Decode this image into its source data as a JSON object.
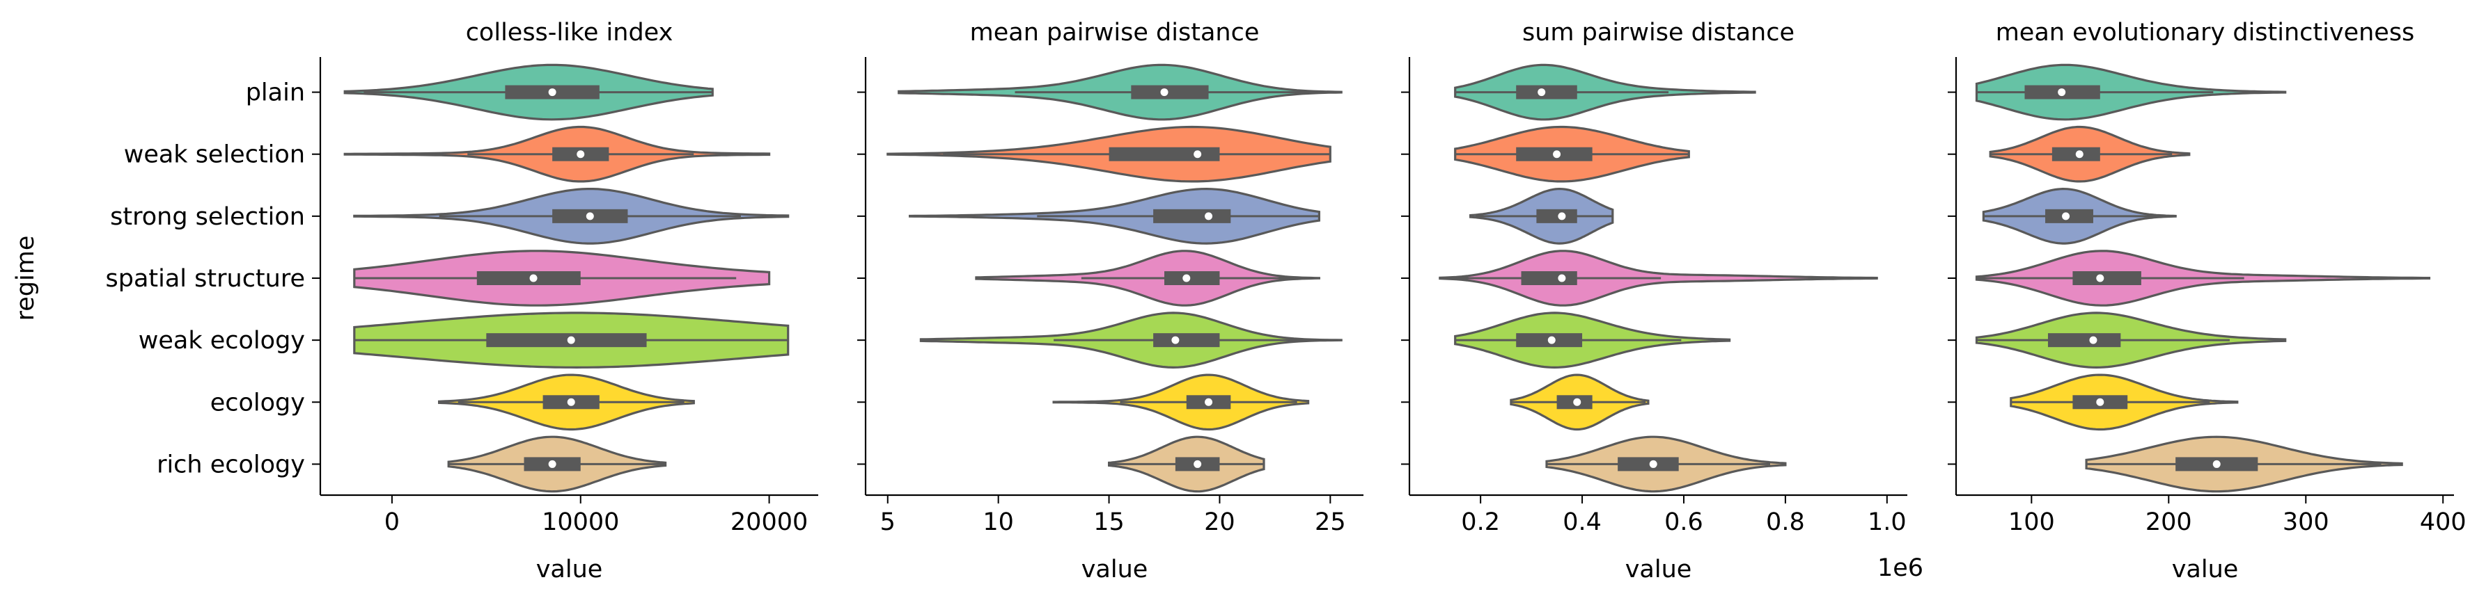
{
  "chart_data": {
    "type": "violin",
    "orientation": "horizontal",
    "shared_y": true,
    "ylabel": "regime",
    "categories": [
      "plain",
      "weak selection",
      "strong selection",
      "spatial structure",
      "weak ecology",
      "ecology",
      "rich ecology"
    ],
    "colors": [
      "#66c2a5",
      "#fc8d62",
      "#8da0cb",
      "#e78ac3",
      "#a6d854",
      "#ffd92f",
      "#e5c494"
    ],
    "panels": [
      {
        "title": "colless-like index",
        "xlabel": "value",
        "offset_label": "",
        "xlim": [
          -3800,
          22600
        ],
        "ticks": [
          0,
          10000,
          20000
        ],
        "tick_labels": [
          "0",
          "10000",
          "20000"
        ],
        "violins": [
          {
            "min": -2500,
            "q1": 6000,
            "median": 8500,
            "q3": 11000,
            "max": 17000,
            "shape": "normal"
          },
          {
            "min": -2500,
            "q1": 8500,
            "median": 10000,
            "q3": 11500,
            "max": 20000,
            "shape": "normal"
          },
          {
            "min": -2000,
            "q1": 8500,
            "median": 10500,
            "q3": 12500,
            "max": 21000,
            "shape": "normal"
          },
          {
            "min": -2000,
            "q1": 4500,
            "median": 7500,
            "q3": 10000,
            "max": 20000,
            "shape": "wide"
          },
          {
            "min": -2000,
            "q1": 5000,
            "median": 9500,
            "q3": 13500,
            "max": 21000,
            "shape": "wide"
          },
          {
            "min": 2500,
            "q1": 8000,
            "median": 9500,
            "q3": 11000,
            "max": 16000,
            "shape": "normal"
          },
          {
            "min": 3000,
            "q1": 7000,
            "median": 8500,
            "q3": 10000,
            "max": 14500,
            "shape": "normal"
          }
        ]
      },
      {
        "title": "mean pairwise distance",
        "xlabel": "value",
        "offset_label": "",
        "xlim": [
          4,
          26.5
        ],
        "ticks": [
          5,
          10,
          15,
          20,
          25
        ],
        "tick_labels": [
          "5",
          "10",
          "15",
          "20",
          "25"
        ],
        "violins": [
          {
            "min": 5.5,
            "q1": 16,
            "median": 17.5,
            "q3": 19.5,
            "max": 25.5,
            "shape": "skewR"
          },
          {
            "min": 5,
            "q1": 15,
            "median": 19,
            "q3": 20,
            "max": 25,
            "shape": "skewR"
          },
          {
            "min": 6,
            "q1": 17,
            "median": 19.5,
            "q3": 20.5,
            "max": 24.5,
            "shape": "skewR"
          },
          {
            "min": 9,
            "q1": 17.5,
            "median": 18.5,
            "q3": 20,
            "max": 24.5,
            "shape": "skewR"
          },
          {
            "min": 6.5,
            "q1": 17,
            "median": 18,
            "q3": 20,
            "max": 25.5,
            "shape": "skewR"
          },
          {
            "min": 12.5,
            "q1": 18.5,
            "median": 19.5,
            "q3": 20.5,
            "max": 24,
            "shape": "normal"
          },
          {
            "min": 15,
            "q1": 18,
            "median": 19,
            "q3": 20,
            "max": 22,
            "shape": "normal"
          }
        ]
      },
      {
        "title": "sum pairwise distance",
        "xlabel": "value",
        "offset_label": "1e6",
        "xlim": [
          0.06,
          1.04
        ],
        "ticks": [
          0.2,
          0.4,
          0.6,
          0.8,
          1.0
        ],
        "tick_labels": [
          "0.2",
          "0.4",
          "0.6",
          "0.8",
          "1.0"
        ],
        "violins": [
          {
            "min": 0.15,
            "q1": 0.27,
            "median": 0.32,
            "q3": 0.39,
            "max": 0.74,
            "shape": "skewL"
          },
          {
            "min": 0.15,
            "q1": 0.27,
            "median": 0.35,
            "q3": 0.42,
            "max": 0.61,
            "shape": "skewL"
          },
          {
            "min": 0.18,
            "q1": 0.31,
            "median": 0.36,
            "q3": 0.39,
            "max": 0.46,
            "shape": "skewR"
          },
          {
            "min": 0.12,
            "q1": 0.28,
            "median": 0.36,
            "q3": 0.39,
            "max": 0.98,
            "shape": "skewL"
          },
          {
            "min": 0.15,
            "q1": 0.27,
            "median": 0.34,
            "q3": 0.4,
            "max": 0.69,
            "shape": "skewL"
          },
          {
            "min": 0.26,
            "q1": 0.35,
            "median": 0.39,
            "q3": 0.42,
            "max": 0.53,
            "shape": "normal"
          },
          {
            "min": 0.33,
            "q1": 0.47,
            "median": 0.54,
            "q3": 0.59,
            "max": 0.8,
            "shape": "normal"
          }
        ]
      },
      {
        "title": "mean evolutionary distinctiveness",
        "xlabel": "value",
        "offset_label": "",
        "xlim": [
          45,
          408
        ],
        "ticks": [
          100,
          200,
          300,
          400
        ],
        "tick_labels": [
          "100",
          "200",
          "300",
          "400"
        ],
        "violins": [
          {
            "min": 60,
            "q1": 95,
            "median": 122,
            "q3": 150,
            "max": 285,
            "shape": "skewL"
          },
          {
            "min": 70,
            "q1": 115,
            "median": 135,
            "q3": 150,
            "max": 215,
            "shape": "normal"
          },
          {
            "min": 65,
            "q1": 110,
            "median": 125,
            "q3": 145,
            "max": 205,
            "shape": "skewR"
          },
          {
            "min": 60,
            "q1": 130,
            "median": 150,
            "q3": 180,
            "max": 390,
            "shape": "skewL"
          },
          {
            "min": 60,
            "q1": 112,
            "median": 145,
            "q3": 165,
            "max": 285,
            "shape": "skewL"
          },
          {
            "min": 85,
            "q1": 130,
            "median": 150,
            "q3": 170,
            "max": 250,
            "shape": "normal"
          },
          {
            "min": 140,
            "q1": 205,
            "median": 235,
            "q3": 265,
            "max": 370,
            "shape": "normal"
          }
        ]
      }
    ]
  }
}
